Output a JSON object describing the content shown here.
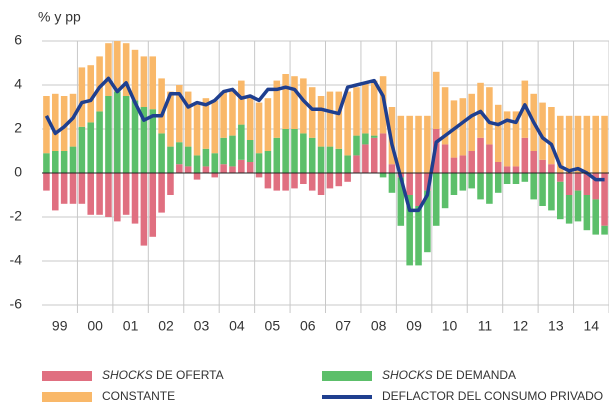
{
  "chart_data": {
    "type": "bar",
    "y_label": "% y pp",
    "categories": [
      "99",
      null,
      null,
      null,
      "00",
      null,
      null,
      null,
      "01",
      null,
      null,
      null,
      "02",
      null,
      null,
      null,
      "03",
      null,
      null,
      null,
      "04",
      null,
      null,
      null,
      "05",
      null,
      null,
      null,
      "06",
      null,
      null,
      null,
      "07",
      null,
      null,
      null,
      "08",
      null,
      null,
      null,
      "09",
      null,
      null,
      null,
      "10",
      null,
      null,
      null,
      "11",
      null,
      null,
      null,
      "12",
      null,
      null,
      null,
      "13",
      null,
      null,
      null,
      "14",
      null,
      null,
      null
    ],
    "series": [
      {
        "name": "SHOCKS DE OFERTA",
        "color": "#e06f80",
        "values": [
          -0.8,
          -1.7,
          -1.4,
          -1.4,
          -1.4,
          -1.9,
          -1.9,
          -2.0,
          -2.2,
          -1.9,
          -2.3,
          -3.3,
          -2.9,
          -1.8,
          -1.0,
          0.4,
          0.3,
          -0.3,
          0.3,
          -0.2,
          0.4,
          0.3,
          0.6,
          0.5,
          -0.2,
          -0.7,
          -0.8,
          -0.8,
          -0.7,
          -0.5,
          -0.8,
          -1.0,
          -0.7,
          -0.6,
          -0.4,
          0.8,
          1.3,
          1.6,
          1.8,
          0.4,
          -0.2,
          -1.0,
          -1.5,
          -0.8,
          2.0,
          1.3,
          0.7,
          0.8,
          1.0,
          1.6,
          1.3,
          0.5,
          0.3,
          0.3,
          1.6,
          1.0,
          0.6,
          0.4,
          -0.4,
          -1.0,
          -0.8,
          -1.0,
          -1.2,
          -2.4
        ]
      },
      {
        "name": "SHOCKS DE DEMANDA",
        "color": "#5cbf6a",
        "values": [
          0.9,
          1.0,
          1.0,
          1.2,
          2.1,
          2.3,
          2.8,
          3.5,
          3.7,
          3.5,
          3.3,
          3.0,
          2.9,
          1.8,
          1.2,
          1.0,
          0.9,
          0.8,
          0.8,
          0.9,
          1.2,
          1.4,
          1.6,
          1.0,
          0.9,
          1.0,
          1.6,
          2.0,
          2.0,
          1.8,
          1.6,
          1.2,
          1.2,
          1.1,
          0.8,
          0.9,
          0.5,
          0.1,
          -0.2,
          -0.9,
          -2.2,
          -3.2,
          -2.7,
          -2.8,
          -2.4,
          -1.6,
          -1.0,
          -0.8,
          -0.7,
          -1.2,
          -1.4,
          -0.9,
          -0.5,
          -0.5,
          -0.4,
          -1.2,
          -1.5,
          -1.7,
          -1.7,
          -1.3,
          -1.4,
          -1.6,
          -1.6,
          -0.4
        ]
      },
      {
        "name": "CONSTANTE",
        "color": "#f9b869",
        "values": [
          2.6,
          2.6,
          2.5,
          2.4,
          2.7,
          2.6,
          2.5,
          2.4,
          2.3,
          2.4,
          2.3,
          2.3,
          2.4,
          2.5,
          2.5,
          2.6,
          2.5,
          2.4,
          2.3,
          2.4,
          2.1,
          2.1,
          2.0,
          2.0,
          2.3,
          2.4,
          2.6,
          2.5,
          2.4,
          2.5,
          2.3,
          2.3,
          2.5,
          2.6,
          2.9,
          2.2,
          2.3,
          2.5,
          2.6,
          2.6,
          2.6,
          2.6,
          2.6,
          2.6,
          2.6,
          2.6,
          2.6,
          2.6,
          2.6,
          2.5,
          2.6,
          2.6,
          2.5,
          2.5,
          2.6,
          2.6,
          2.6,
          2.6,
          2.6,
          2.6,
          2.6,
          2.6,
          2.6,
          2.6
        ]
      },
      {
        "name": "DEFLACTOR DEL CONSUMO PRIVADO",
        "color": "#1f3f8f",
        "line": true,
        "values": [
          2.6,
          1.8,
          2.1,
          2.5,
          3.2,
          3.3,
          3.9,
          4.3,
          3.7,
          4.1,
          3.2,
          2.4,
          2.6,
          2.6,
          3.6,
          3.6,
          3.0,
          3.2,
          3.1,
          3.3,
          3.7,
          3.8,
          3.4,
          3.5,
          3.3,
          3.8,
          3.8,
          3.9,
          3.8,
          3.3,
          2.9,
          2.9,
          2.8,
          2.7,
          3.9,
          4.0,
          4.1,
          4.2,
          3.5,
          1.3,
          -0.2,
          -1.7,
          -1.7,
          -1.0,
          1.4,
          1.7,
          2.0,
          2.3,
          2.6,
          2.8,
          2.3,
          2.2,
          2.4,
          2.3,
          3.1,
          2.3,
          1.6,
          1.3,
          0.3,
          0.1,
          0.2,
          0.0,
          -0.3,
          -0.3
        ]
      }
    ],
    "ylim": [
      -6,
      6
    ],
    "yticks": [
      -6,
      -4,
      -2,
      0,
      2,
      4,
      6
    ],
    "grid": true
  }
}
